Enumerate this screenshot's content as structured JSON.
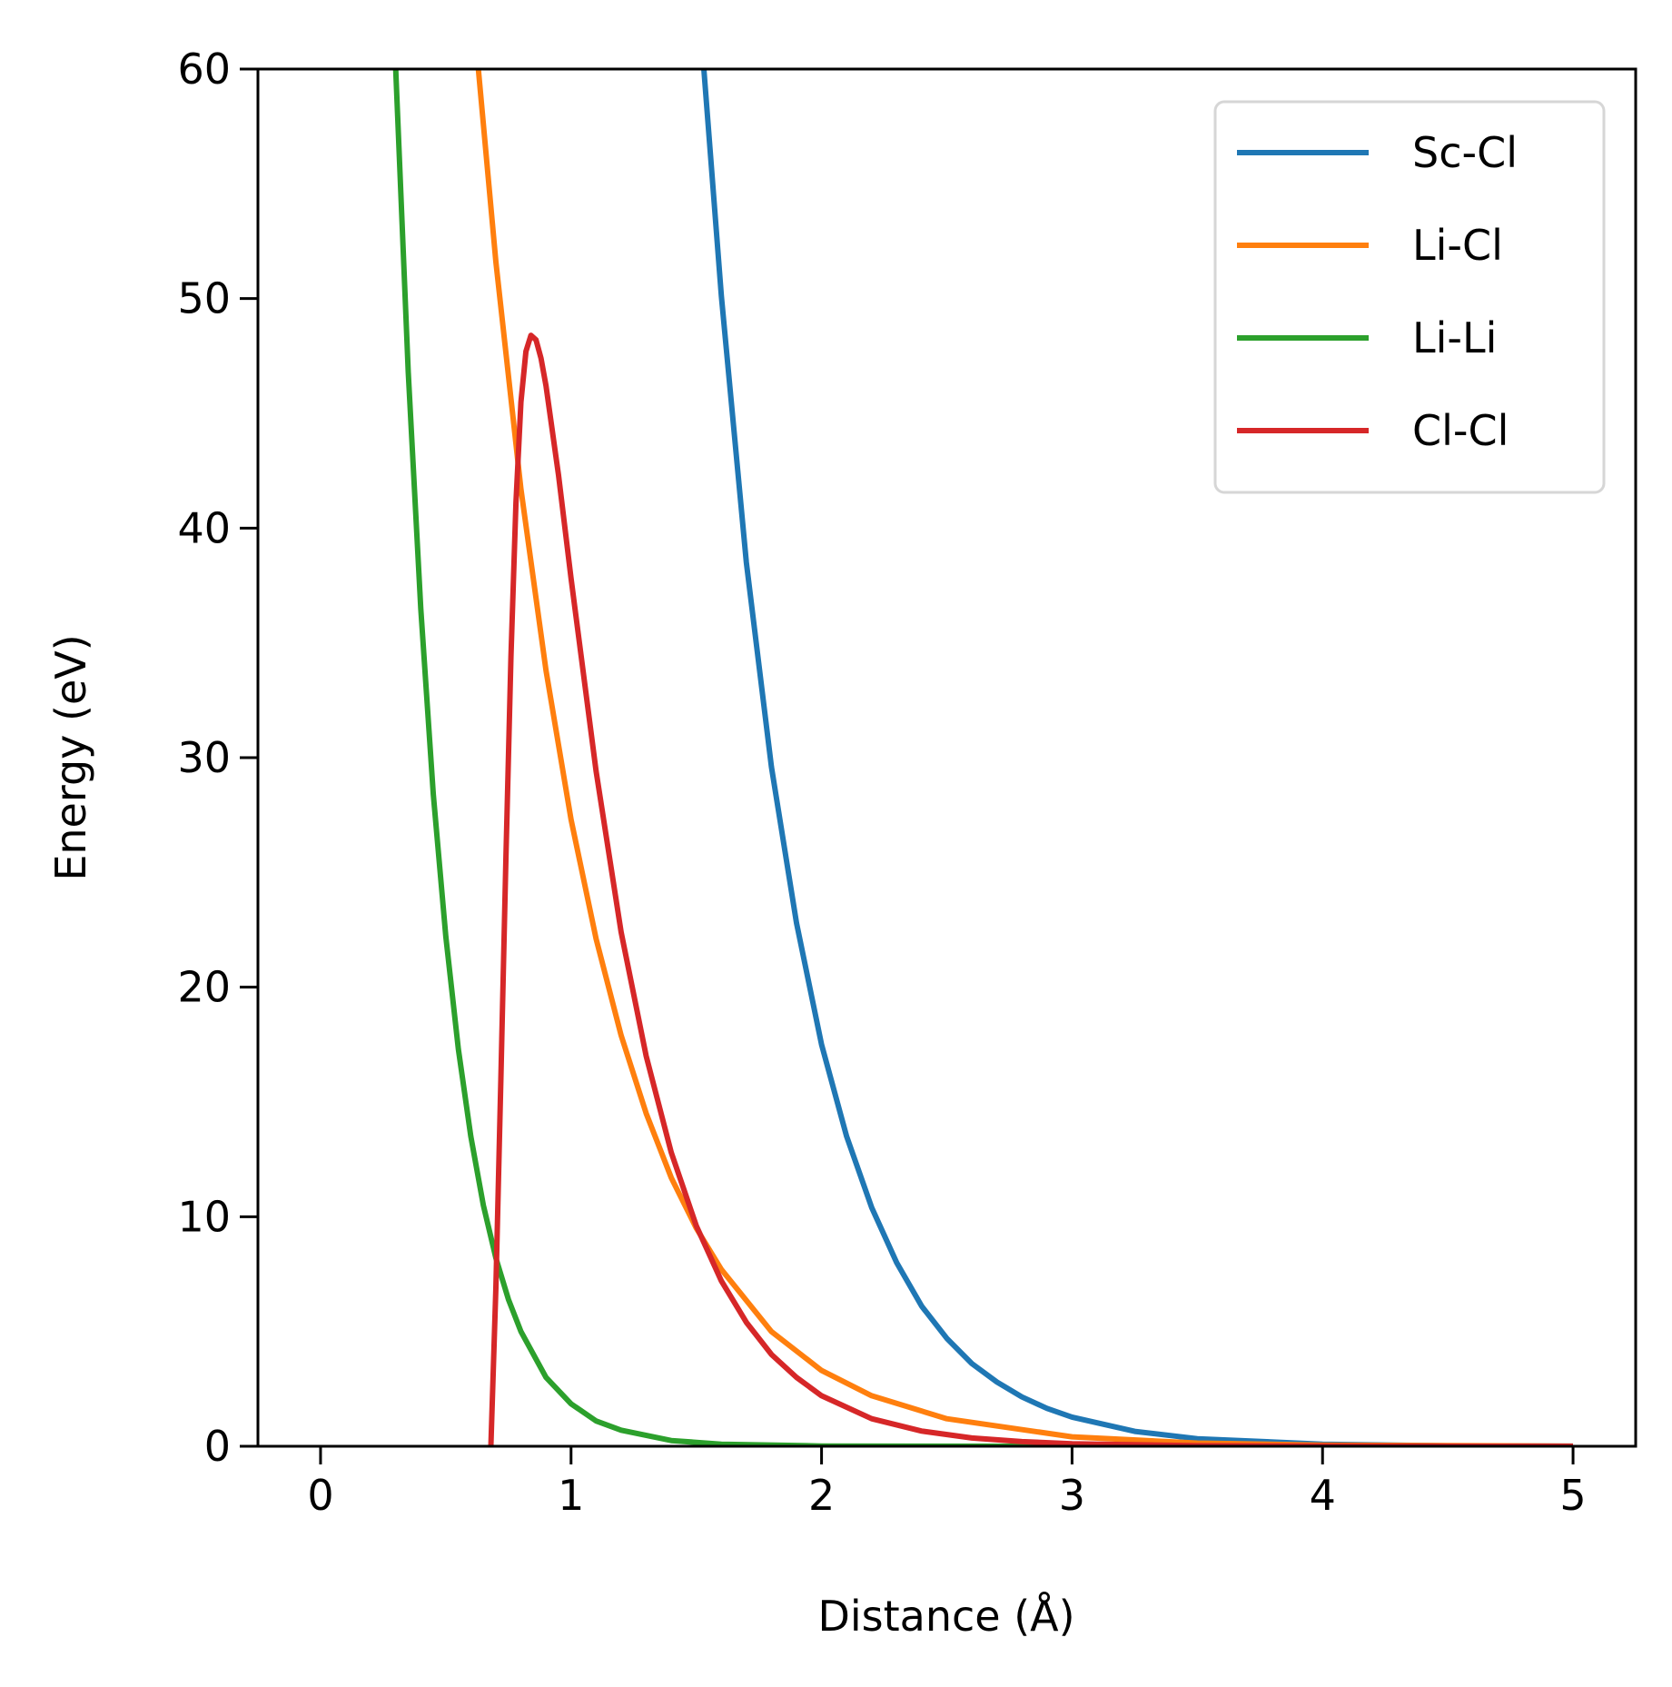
{
  "chart_data": {
    "type": "line",
    "xlabel": "Distance (Å)",
    "ylabel": "Energy (eV)",
    "xlim": [
      -0.25,
      5.25
    ],
    "ylim": [
      0,
      60
    ],
    "xticks": [
      0,
      1,
      2,
      3,
      4,
      5
    ],
    "yticks": [
      0,
      10,
      20,
      30,
      40,
      50,
      60
    ],
    "grid": false,
    "legend_position": "top-right",
    "series": [
      {
        "name": "Sc-Cl",
        "color": "#1f77b4",
        "x": [
          1.53,
          1.6,
          1.7,
          1.8,
          1.9,
          2.0,
          2.1,
          2.2,
          2.3,
          2.4,
          2.5,
          2.6,
          2.7,
          2.8,
          2.9,
          3.0,
          3.25,
          3.5,
          4.0,
          4.5,
          5.0
        ],
        "y": [
          60,
          50.1,
          38.5,
          29.6,
          22.8,
          17.5,
          13.5,
          10.4,
          8.0,
          6.1,
          4.7,
          3.6,
          2.8,
          2.15,
          1.65,
          1.27,
          0.65,
          0.33,
          0.09,
          0.02,
          0.005
        ]
      },
      {
        "name": "Li-Cl",
        "color": "#ff7f0e",
        "x": [
          0.63,
          0.7,
          0.8,
          0.9,
          1.0,
          1.1,
          1.2,
          1.3,
          1.4,
          1.5,
          1.6,
          1.8,
          2.0,
          2.2,
          2.5,
          3.0,
          3.5,
          4.0,
          5.0
        ],
        "y": [
          60,
          51.6,
          41.7,
          33.8,
          27.3,
          22.1,
          17.9,
          14.5,
          11.7,
          9.5,
          7.7,
          5.0,
          3.3,
          2.2,
          1.2,
          0.41,
          0.14,
          0.05,
          0.005
        ]
      },
      {
        "name": "Li-Li",
        "color": "#2ca02c",
        "x": [
          0.3,
          0.35,
          0.4,
          0.45,
          0.5,
          0.55,
          0.6,
          0.65,
          0.7,
          0.75,
          0.8,
          0.9,
          1.0,
          1.1,
          1.2,
          1.4,
          1.6,
          2.0,
          3.0,
          4.0,
          5.0
        ],
        "y": [
          60,
          46.8,
          36.5,
          28.4,
          22.2,
          17.3,
          13.5,
          10.5,
          8.2,
          6.4,
          5.0,
          3.0,
          1.85,
          1.1,
          0.7,
          0.25,
          0.09,
          0.01,
          0.001,
          0.0,
          0.0
        ]
      },
      {
        "name": "Cl-Cl",
        "color": "#d62728",
        "x": [
          0.68,
          0.7,
          0.72,
          0.74,
          0.76,
          0.78,
          0.8,
          0.82,
          0.84,
          0.86,
          0.88,
          0.9,
          0.95,
          1.0,
          1.1,
          1.2,
          1.3,
          1.4,
          1.5,
          1.6,
          1.7,
          1.8,
          1.9,
          2.0,
          2.2,
          2.4,
          2.6,
          2.8,
          3.0,
          3.5,
          4.0,
          5.0
        ],
        "y": [
          0,
          6.9,
          16.0,
          25.7,
          34.4,
          41.1,
          45.5,
          47.7,
          48.4,
          48.2,
          47.4,
          46.2,
          42.3,
          37.8,
          29.4,
          22.4,
          17.0,
          12.8,
          9.6,
          7.2,
          5.4,
          4.0,
          3.0,
          2.2,
          1.2,
          0.66,
          0.36,
          0.2,
          0.11,
          0.025,
          0.006,
          0.0003
        ]
      }
    ]
  }
}
